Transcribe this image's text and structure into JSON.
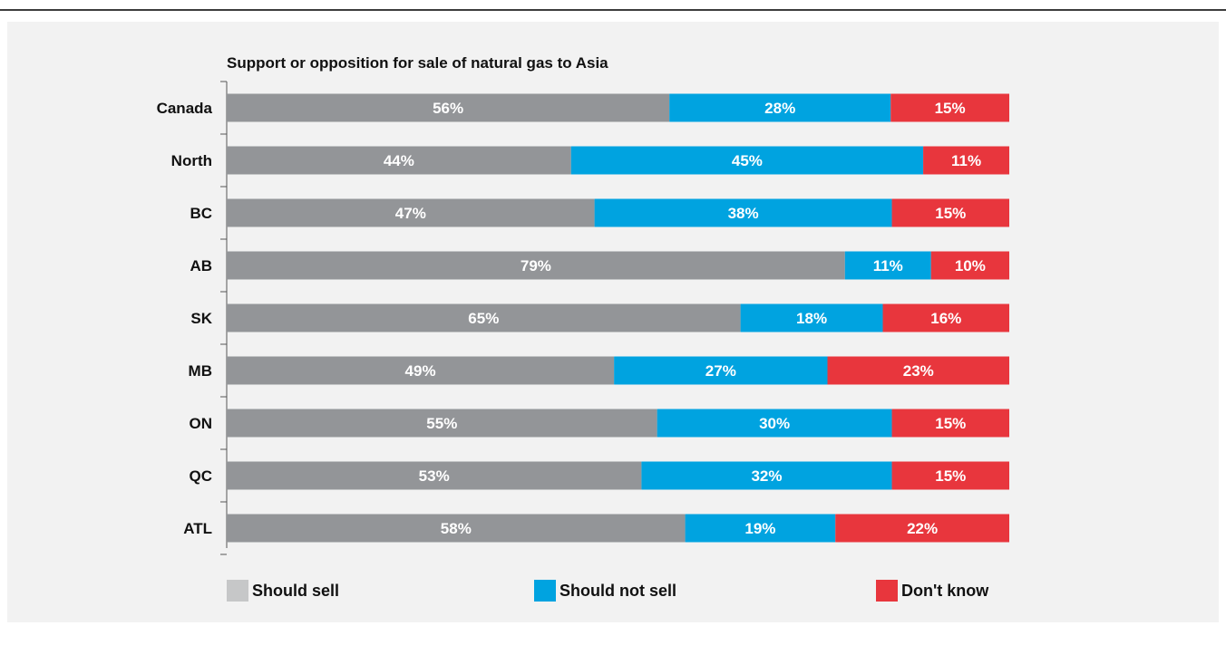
{
  "chart_data": {
    "type": "bar",
    "orientation": "horizontal",
    "stacked": true,
    "title": "Support or opposition for sale of natural gas to Asia",
    "categories": [
      "Canada",
      "North",
      "BC",
      "AB",
      "SK",
      "MB",
      "ON",
      "QC",
      "ATL"
    ],
    "series": [
      {
        "name": "Should sell",
        "color": "#939598",
        "values": [
          56,
          44,
          47,
          79,
          65,
          49,
          55,
          53,
          58
        ]
      },
      {
        "name": "Should not sell",
        "color": "#00a3e0",
        "values": [
          28,
          45,
          38,
          11,
          18,
          27,
          30,
          32,
          19
        ]
      },
      {
        "name": "Don't know",
        "color": "#e8363d",
        "values": [
          15,
          11,
          15,
          10,
          16,
          23,
          15,
          15,
          22
        ]
      }
    ],
    "value_suffix": "%",
    "legend_position": "bottom",
    "grid": false
  },
  "legend": {
    "items": [
      {
        "label": "Should sell",
        "color": "#c6c7c8"
      },
      {
        "label": "Should not sell",
        "color": "#00a3e0"
      },
      {
        "label": "Don't know",
        "color": "#e8363d"
      }
    ]
  }
}
